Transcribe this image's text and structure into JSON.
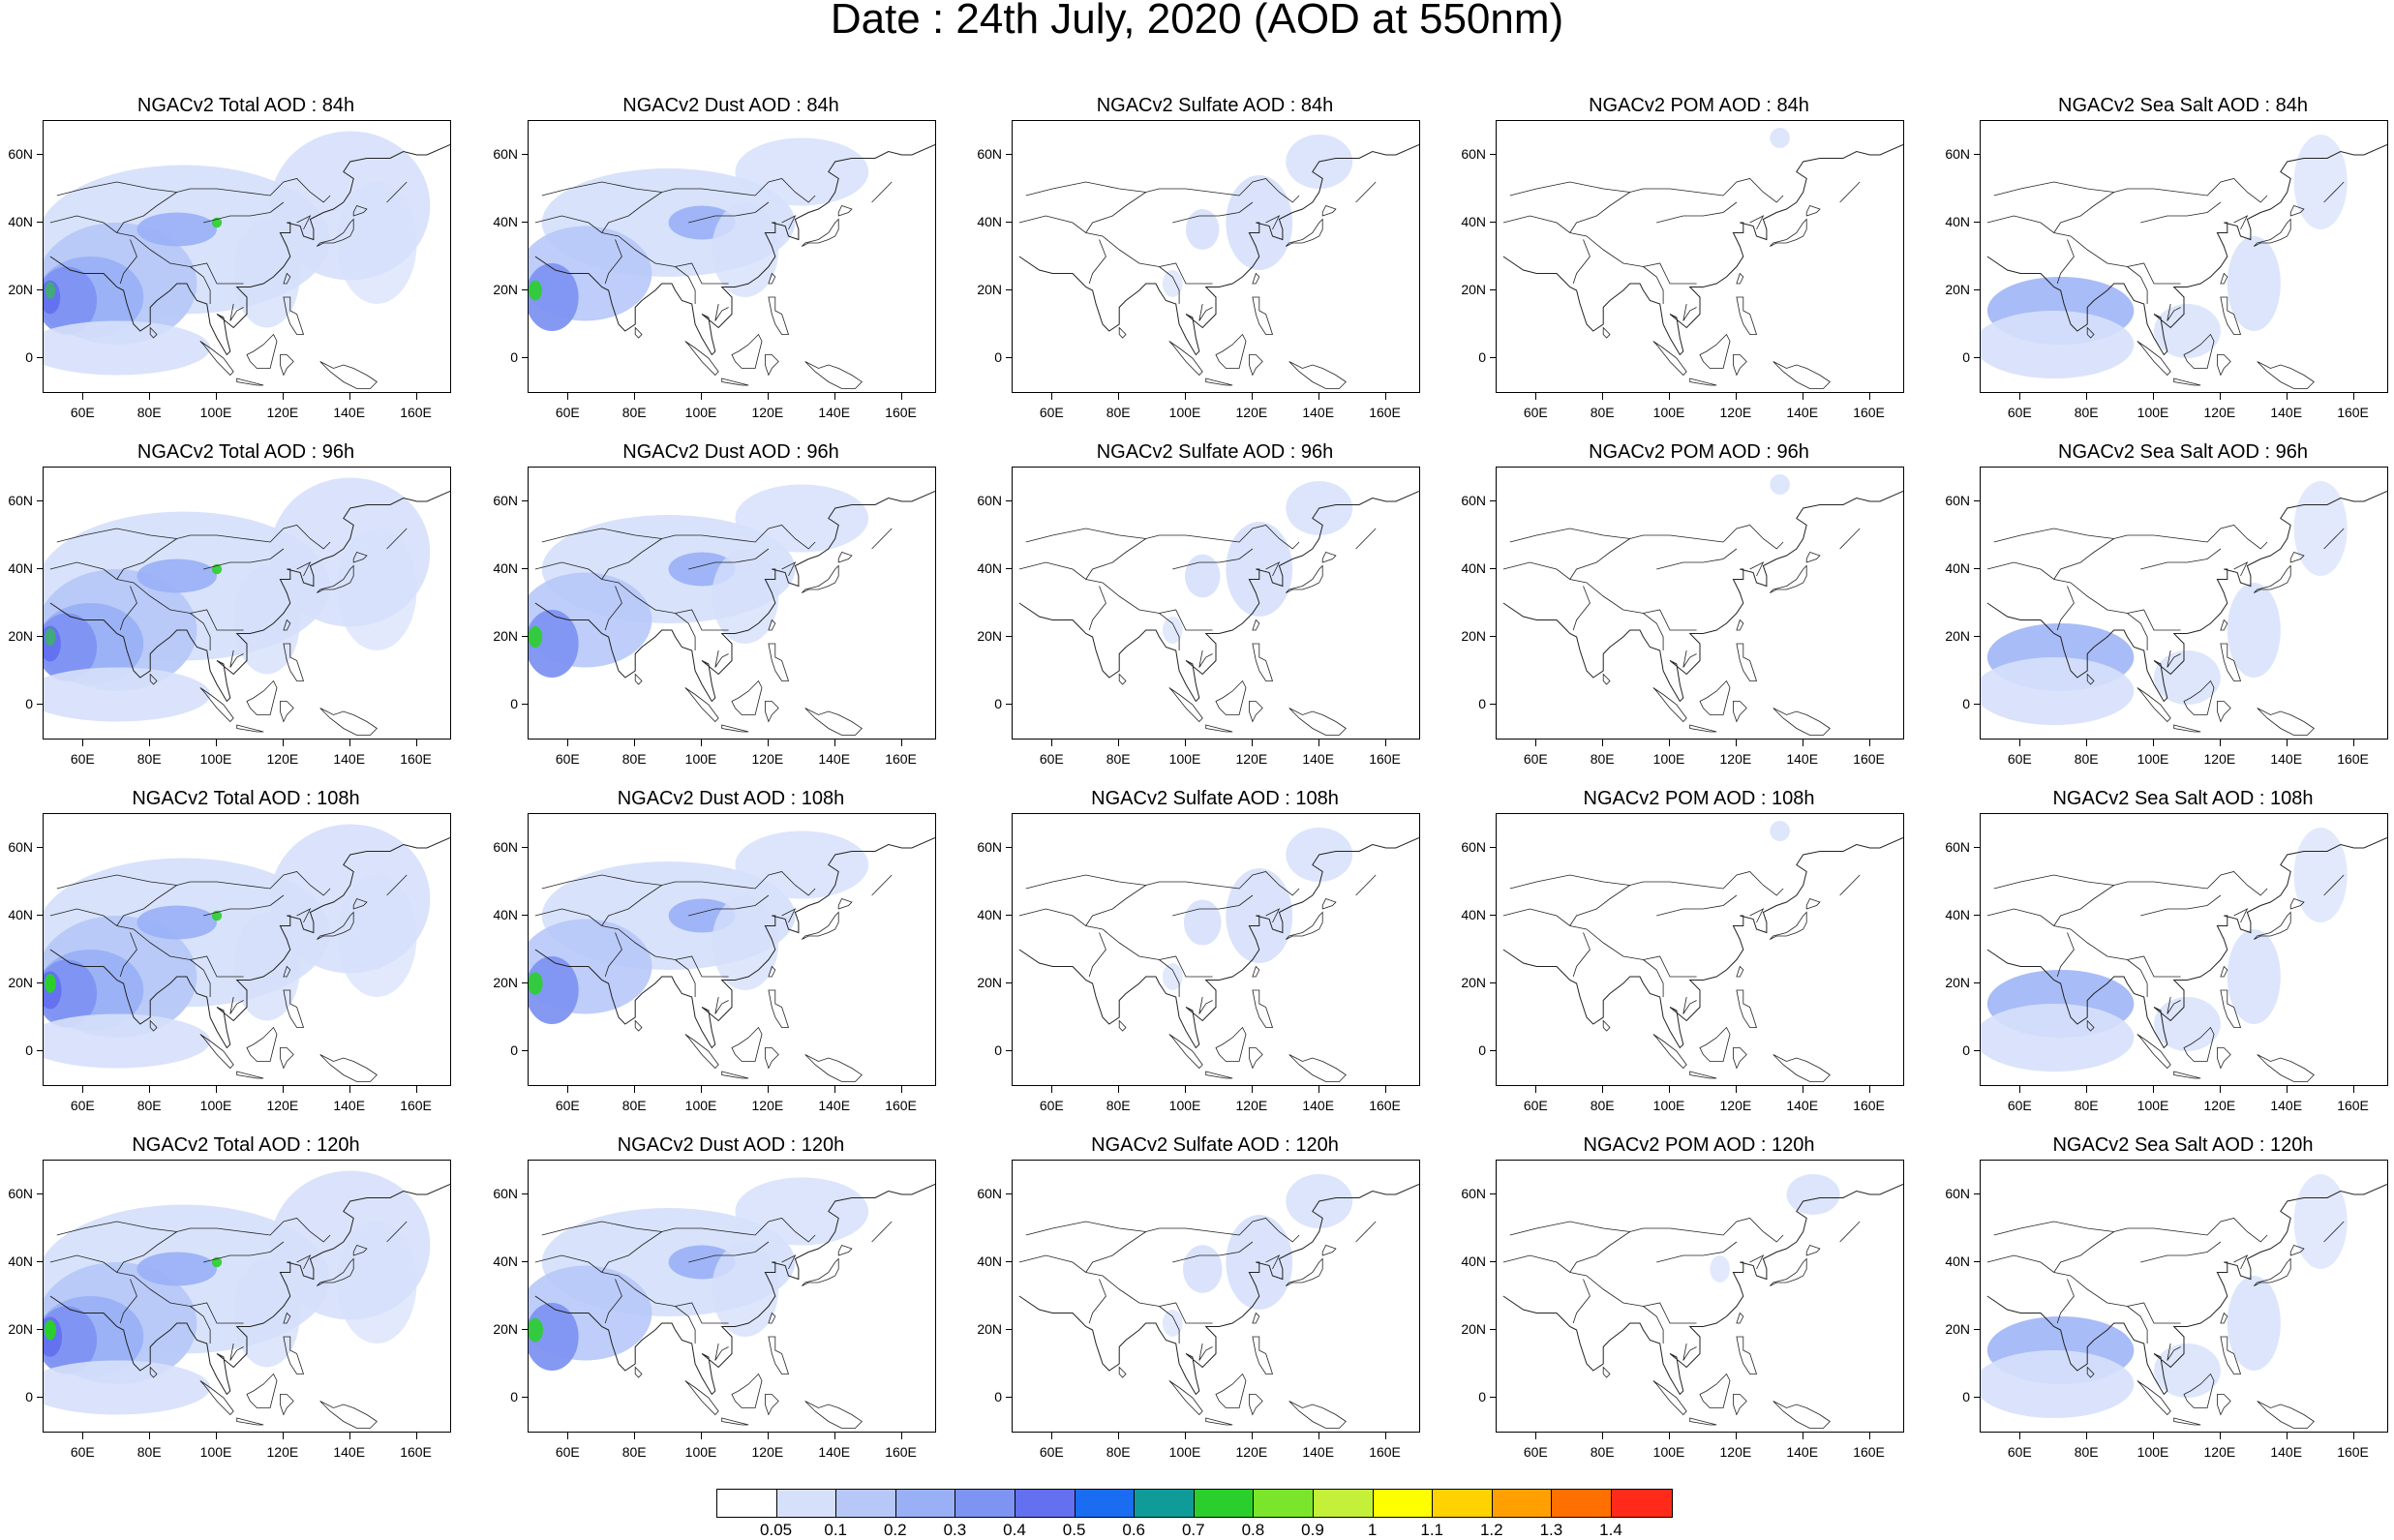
{
  "title": "Date : 24th July, 2020 (AOD at 550nm)",
  "lat_ticks": [
    "60N",
    "40N",
    "20N",
    "0"
  ],
  "lon_ticks": [
    "60E",
    "80E",
    "100E",
    "120E",
    "140E",
    "160E"
  ],
  "panels": [
    [
      "NGACv2 Total AOD : 84h",
      "NGACv2 Dust AOD : 84h",
      "NGACv2 Sulfate AOD : 84h",
      "NGACv2 POM AOD : 84h",
      "NGACv2 Sea Salt AOD : 84h"
    ],
    [
      "NGACv2 Total AOD : 96h",
      "NGACv2 Dust AOD : 96h",
      "NGACv2 Sulfate AOD : 96h",
      "NGACv2 POM AOD : 96h",
      "NGACv2 Sea Salt AOD : 96h"
    ],
    [
      "NGACv2 Total AOD : 108h",
      "NGACv2 Dust AOD : 108h",
      "NGACv2 Sulfate AOD : 108h",
      "NGACv2 POM AOD : 108h",
      "NGACv2 Sea Salt AOD : 108h"
    ],
    [
      "NGACv2 Total AOD : 120h",
      "NGACv2 Dust AOD : 120h",
      "NGACv2 Sulfate AOD : 120h",
      "NGACv2 POM AOD : 120h",
      "NGACv2 Sea Salt  AOD : 120h"
    ]
  ],
  "colorbar": {
    "labels": [
      "0.05",
      "0.1",
      "0.2",
      "0.3",
      "0.4",
      "0.5",
      "0.6",
      "0.7",
      "0.8",
      "0.9",
      "1",
      "1.1",
      "1.2",
      "1.3",
      "1.4"
    ],
    "colors": [
      "#ffffff",
      "#d6e0fb",
      "#b7c8f8",
      "#99b0f6",
      "#7e94f2",
      "#6370ef",
      "#1a6cf0",
      "#0f9c98",
      "#2bcf2b",
      "#7ae52a",
      "#c4f03a",
      "#ffff00",
      "#ffd200",
      "#ffa000",
      "#ff7000",
      "#ff2a1a"
    ]
  }
}
